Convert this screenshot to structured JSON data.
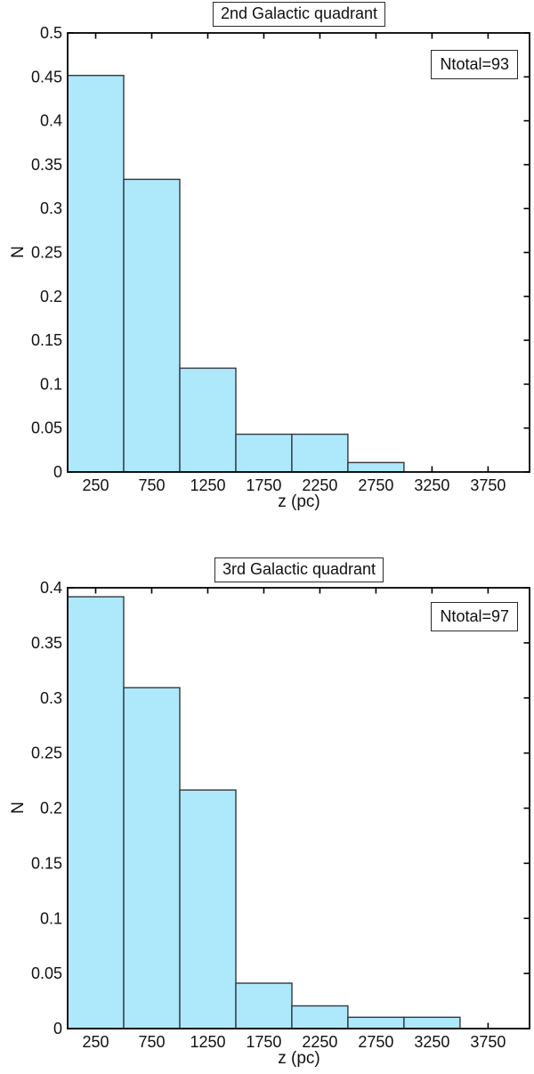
{
  "figure": {
    "background": "#ffffff",
    "axis_color": "#000000",
    "text_color": "#111111"
  },
  "chart_data": [
    {
      "type": "bar",
      "subtype": "histogram",
      "title": "2nd Galactic quadrant",
      "annotation": "Ntotal=93",
      "xlabel": "z (pc)",
      "ylabel": "N",
      "bin_start": 0,
      "bin_width": 500,
      "values": [
        0.4516,
        0.3333,
        0.1183,
        0.043,
        0.043,
        0.0108,
        0,
        0
      ],
      "xlim": [
        0,
        4120
      ],
      "ylim": [
        0,
        0.5
      ],
      "xticks": [
        250,
        750,
        1250,
        1750,
        2250,
        2750,
        3250,
        3750
      ],
      "xtick_labels": [
        "250",
        "750",
        "1250",
        "1750",
        "2250",
        "2750",
        "3250",
        "3750"
      ],
      "yticks": [
        0,
        0.05,
        0.1,
        0.15,
        0.2,
        0.25,
        0.3,
        0.35,
        0.4,
        0.45,
        0.5
      ],
      "ytick_labels": [
        "0",
        "0.05",
        "0.1",
        "0.15",
        "0.2",
        "0.25",
        "0.3",
        "0.35",
        "0.4",
        "0.45",
        "0.5"
      ],
      "grid": false,
      "legend_position": "none",
      "bar_fill": "#aee8fb",
      "bar_edge": "#32383f"
    },
    {
      "type": "bar",
      "subtype": "histogram",
      "title": "3rd Galactic quadrant",
      "annotation": "Ntotal=97",
      "xlabel": "z (pc)",
      "ylabel": "N",
      "bin_start": 0,
      "bin_width": 500,
      "values": [
        0.3918,
        0.3093,
        0.2165,
        0.0412,
        0.0206,
        0.0103,
        0.0103,
        0
      ],
      "xlim": [
        0,
        4120
      ],
      "ylim": [
        0,
        0.4
      ],
      "xticks": [
        250,
        750,
        1250,
        1750,
        2250,
        2750,
        3250,
        3750
      ],
      "xtick_labels": [
        "250",
        "750",
        "1250",
        "1750",
        "2250",
        "2750",
        "3250",
        "3750"
      ],
      "yticks": [
        0,
        0.05,
        0.1,
        0.15,
        0.2,
        0.25,
        0.3,
        0.35,
        0.4
      ],
      "ytick_labels": [
        "0",
        "0.05",
        "0.1",
        "0.15",
        "0.2",
        "0.25",
        "0.3",
        "0.35",
        "0.4"
      ],
      "grid": false,
      "legend_position": "none",
      "bar_fill": "#aee8fb",
      "bar_edge": "#32383f"
    }
  ]
}
